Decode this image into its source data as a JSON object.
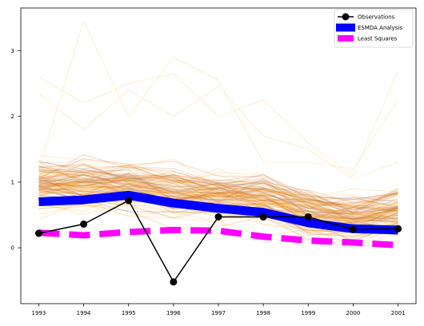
{
  "chart_data": {
    "type": "line",
    "x": [
      1993,
      1994,
      1995,
      1996,
      1997,
      1998,
      1999,
      2000,
      2001
    ],
    "xlim": [
      1992.6,
      2001.4
    ],
    "ylim": [
      -0.85,
      3.65
    ],
    "xticks": [
      "1993",
      "1994",
      "1995",
      "1996",
      "1997",
      "1998",
      "1999",
      "2000",
      "2001"
    ],
    "yticks": [
      0,
      1,
      2,
      3
    ],
    "ytick_labels": [
      "0",
      "1",
      "2",
      "3"
    ],
    "grid": false,
    "legend_position": "top-right",
    "series": [
      {
        "name": "Observations",
        "color": "#000000",
        "style": "solid-line-circle-markers",
        "values": [
          0.22,
          0.36,
          0.72,
          -0.52,
          0.47,
          0.47,
          0.47,
          0.28,
          0.29
        ]
      },
      {
        "name": "ESMDA Analysis",
        "color": "#0000ff",
        "style": "thick-solid",
        "values": [
          0.7,
          0.73,
          0.8,
          0.68,
          0.6,
          0.54,
          0.38,
          0.29,
          0.27
        ]
      },
      {
        "name": "Least Squares",
        "color": "#ff00ff",
        "style": "thick-dashed",
        "values": [
          0.23,
          0.19,
          0.24,
          0.27,
          0.26,
          0.17,
          0.11,
          0.08,
          0.04
        ]
      }
    ],
    "ensemble": {
      "description_only": "background ensemble members (orange/brown) and prior samples (faint)",
      "color_posterior": "#d2691e",
      "color_prior": "#ffa500",
      "color_gray": "#8c7a86"
    }
  }
}
